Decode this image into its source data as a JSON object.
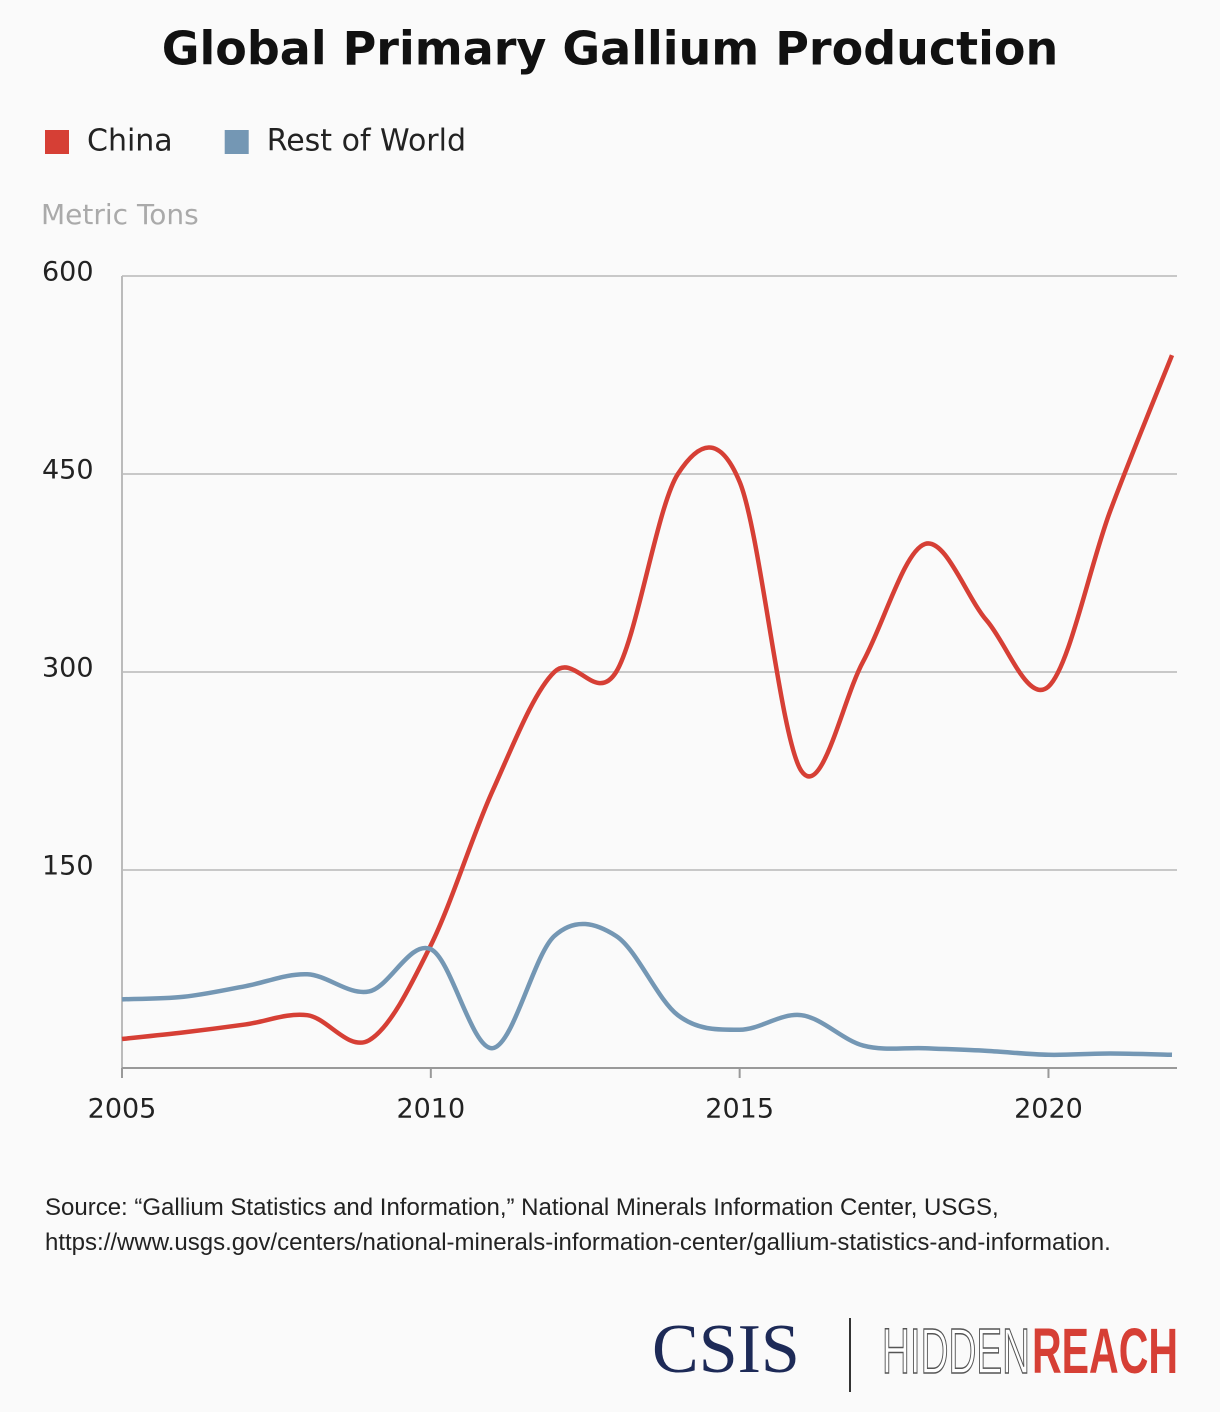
{
  "chart_data": {
    "type": "line",
    "title": "Global Primary Gallium Production",
    "y_label": "Metric Tons",
    "x": [
      2005,
      2006,
      2007,
      2008,
      2009,
      2010,
      2011,
      2012,
      2013,
      2014,
      2015,
      2016,
      2017,
      2018,
      2019,
      2020,
      2021,
      2022
    ],
    "series": [
      {
        "name": "China",
        "color": "#d63f35",
        "values": [
          22,
          27,
          33,
          40,
          21,
          93,
          210,
          300,
          300,
          450,
          444,
          225,
          308,
          397,
          339,
          289,
          422,
          540
        ]
      },
      {
        "name": "Rest of World",
        "color": "#7497b4",
        "values": [
          52,
          54,
          62,
          71,
          58,
          90,
          15,
          100,
          100,
          40,
          29,
          40,
          17,
          15,
          13,
          10,
          11,
          10
        ]
      }
    ],
    "xlim": [
      2005,
      2022
    ],
    "xticks": [
      2005,
      2010,
      2015,
      2020
    ],
    "ylim": [
      0,
      600
    ],
    "yticks": [
      150,
      300,
      450,
      600
    ],
    "grid": true,
    "legend": "top-left",
    "source": "Source: “Gallium Statistics and Information,” National Minerals Information Center, USGS, https://www.usgs.gov/centers/national-minerals-information-center/gallium-statistics-and-information.",
    "logo": {
      "org": "CSIS",
      "brand_light": "HIDDEN",
      "brand_bold": "REACH"
    }
  }
}
